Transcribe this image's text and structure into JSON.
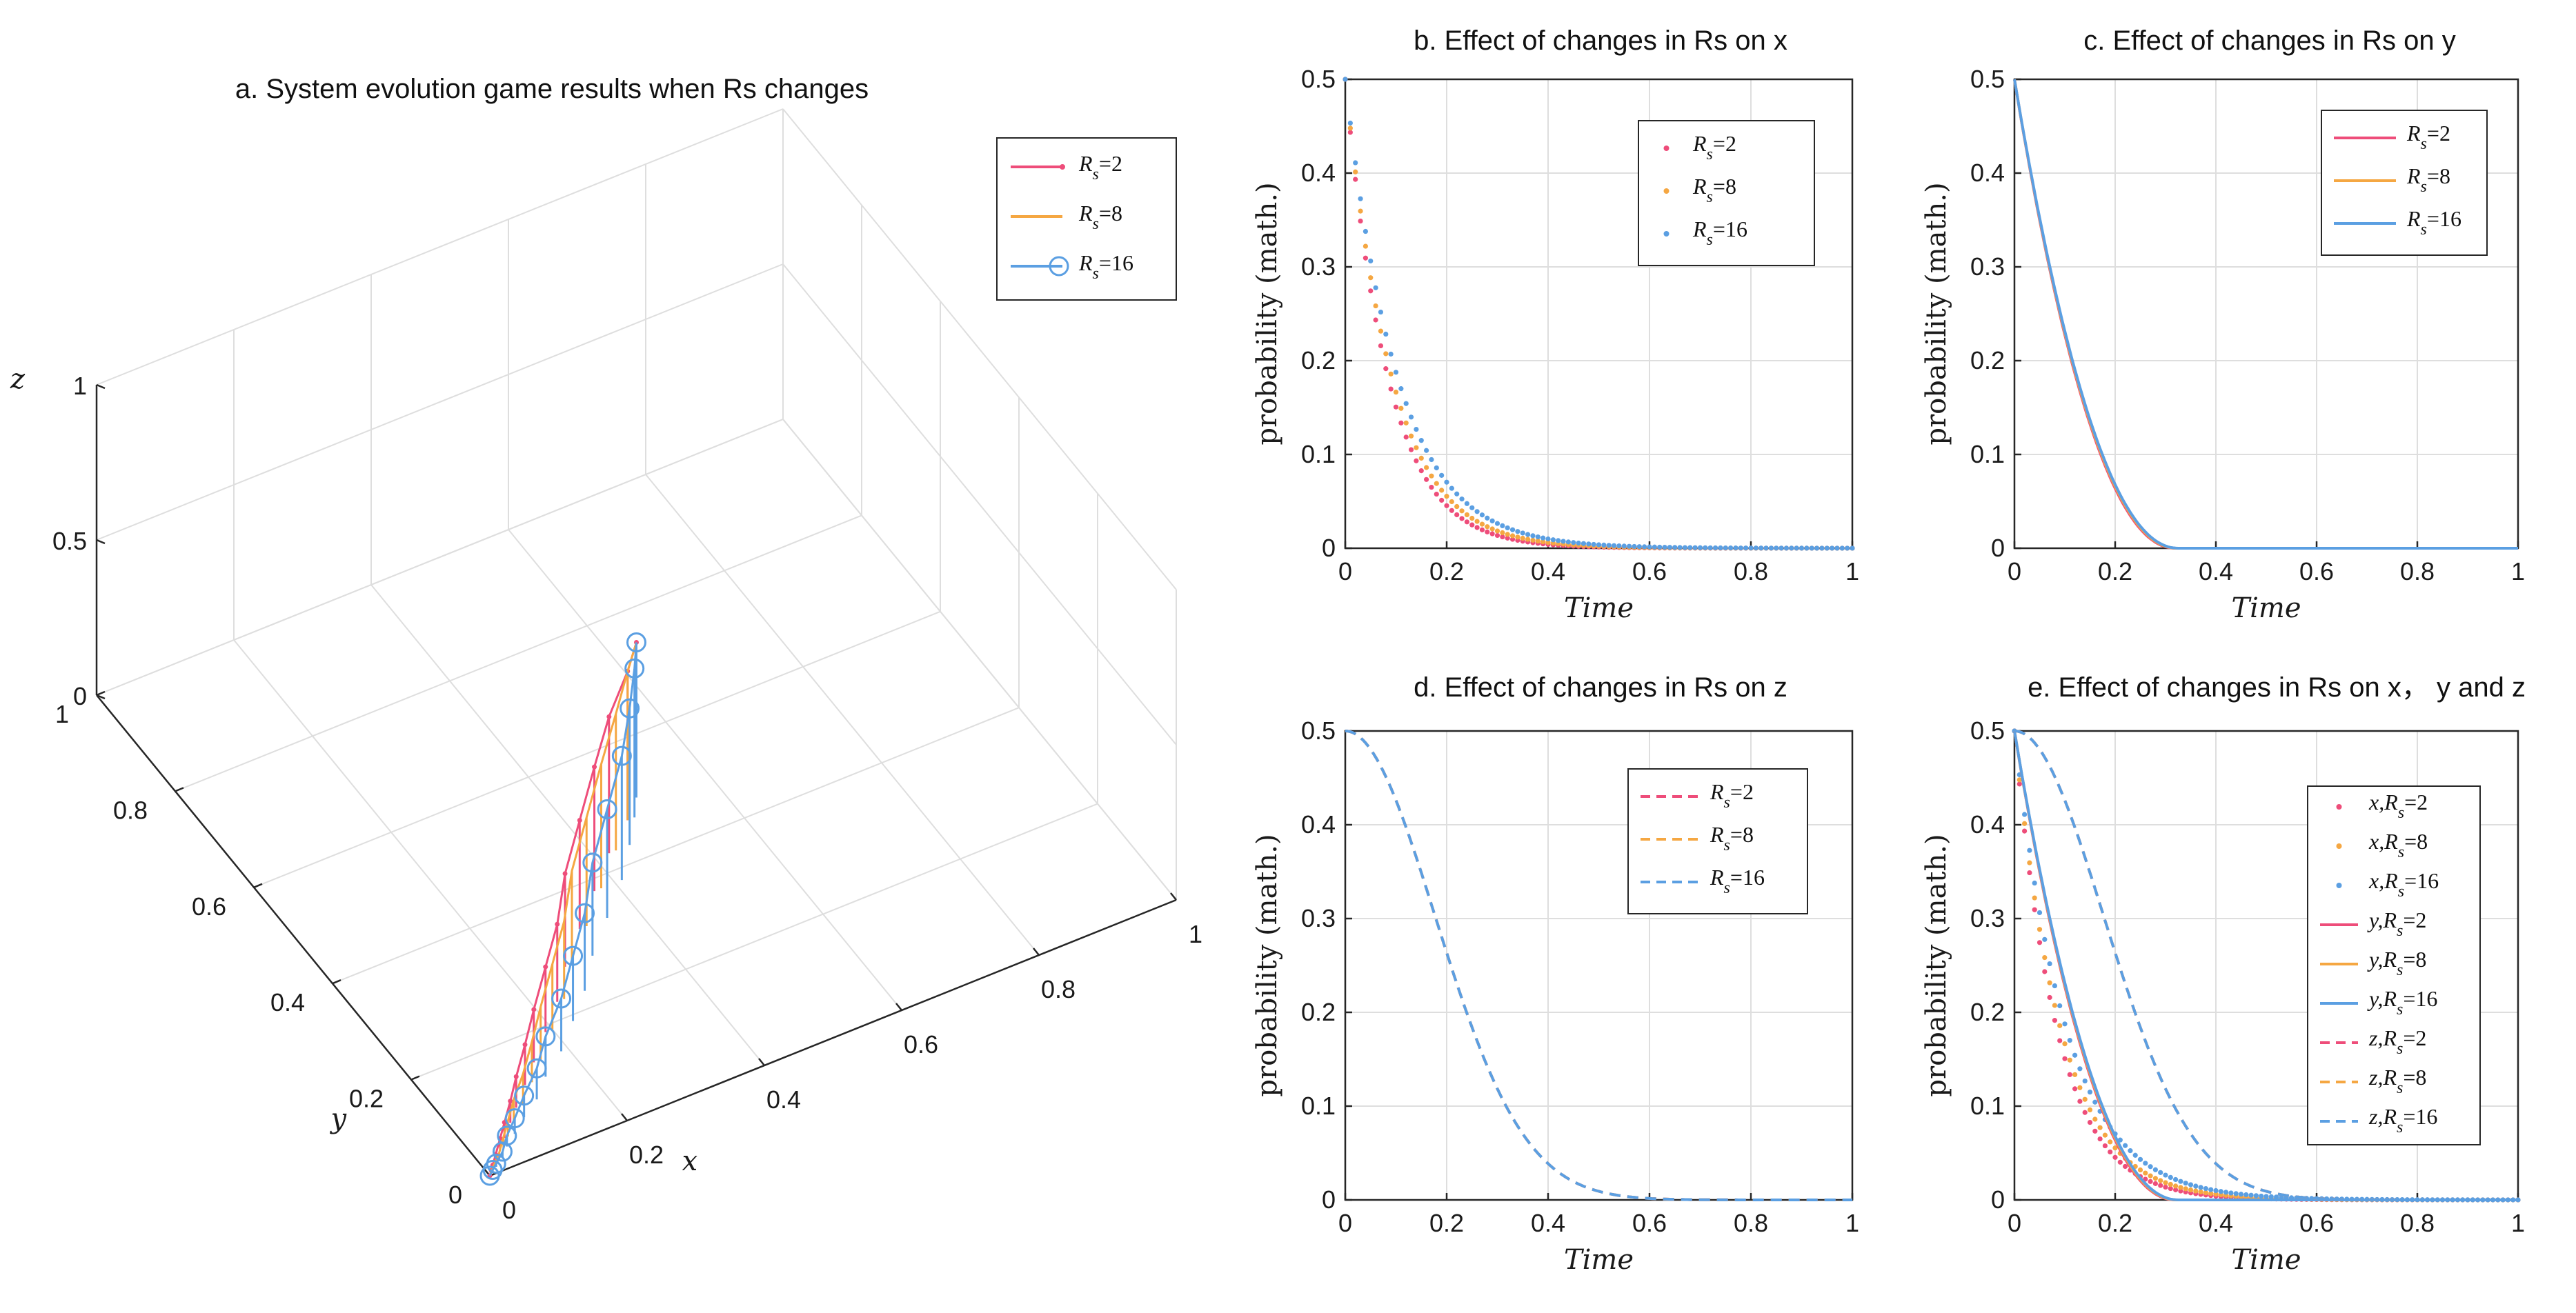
{
  "colors": {
    "rs2": "#ee4d7a",
    "rs8": "#f5a742",
    "rs16": "#5b9fe2"
  },
  "chart_data": [
    {
      "id": "a",
      "type": "line3d",
      "title": "a. System evolution game results when Rs changes",
      "xlabel": "x",
      "ylabel": "y",
      "zlabel": "z",
      "xlim": [
        0,
        1
      ],
      "ylim": [
        0,
        1
      ],
      "zlim": [
        0,
        1
      ],
      "xticks": [
        "0",
        "0.2",
        "0.4",
        "0.6",
        "0.8",
        "1"
      ],
      "yticks": [
        "0",
        "0.2",
        "0.4",
        "0.6",
        "0.8",
        "1"
      ],
      "zticks": [
        "0",
        "0.5",
        "1"
      ],
      "legend": [
        {
          "sym": "R",
          "sub": "s",
          "label": "=2",
          "color": "#ee4d7a"
        },
        {
          "sym": "R",
          "sub": "s",
          "label": "=8",
          "color": "#f5a742"
        },
        {
          "sym": "R",
          "sub": "s",
          "label": "=16",
          "color": "#5b9fe2"
        }
      ],
      "series": [
        {
          "name": "Rs=2",
          "x": [
            0.5,
            0.47,
            0.42,
            0.37,
            0.32,
            0.27,
            0.23,
            0.19,
            0.15,
            0.12,
            0.09,
            0.07,
            0.05,
            0.035,
            0.02,
            0.01,
            0.005,
            0.0
          ],
          "y": [
            0.5,
            0.47,
            0.43,
            0.38,
            0.33,
            0.28,
            0.23,
            0.19,
            0.15,
            0.12,
            0.09,
            0.07,
            0.05,
            0.035,
            0.02,
            0.01,
            0.005,
            0.0
          ],
          "z": [
            0.5,
            0.48,
            0.44,
            0.4,
            0.35,
            0.3,
            0.25,
            0.21,
            0.17,
            0.13,
            0.1,
            0.07,
            0.05,
            0.035,
            0.02,
            0.01,
            0.005,
            0.0
          ]
        },
        {
          "name": "Rs=8",
          "x": [
            0.5,
            0.47,
            0.43,
            0.38,
            0.33,
            0.28,
            0.24,
            0.2,
            0.16,
            0.13,
            0.1,
            0.075,
            0.055,
            0.04,
            0.025,
            0.012,
            0.006,
            0.0
          ],
          "y": [
            0.5,
            0.47,
            0.43,
            0.38,
            0.33,
            0.28,
            0.23,
            0.19,
            0.15,
            0.12,
            0.09,
            0.07,
            0.05,
            0.035,
            0.02,
            0.01,
            0.005,
            0.0
          ],
          "z": [
            0.5,
            0.48,
            0.44,
            0.4,
            0.35,
            0.3,
            0.25,
            0.21,
            0.17,
            0.13,
            0.1,
            0.07,
            0.05,
            0.035,
            0.02,
            0.01,
            0.005,
            0.0
          ]
        },
        {
          "name": "Rs=16",
          "x": [
            0.5,
            0.48,
            0.45,
            0.41,
            0.36,
            0.31,
            0.27,
            0.23,
            0.19,
            0.15,
            0.12,
            0.09,
            0.065,
            0.045,
            0.03,
            0.015,
            0.007,
            0.0
          ],
          "y": [
            0.5,
            0.47,
            0.43,
            0.38,
            0.33,
            0.28,
            0.23,
            0.19,
            0.15,
            0.12,
            0.09,
            0.07,
            0.05,
            0.035,
            0.02,
            0.01,
            0.005,
            0.0
          ],
          "z": [
            0.5,
            0.48,
            0.44,
            0.4,
            0.35,
            0.3,
            0.25,
            0.21,
            0.17,
            0.13,
            0.1,
            0.07,
            0.05,
            0.035,
            0.02,
            0.01,
            0.005,
            0.0
          ]
        }
      ]
    },
    {
      "id": "b",
      "type": "scatter",
      "title": "b. Effect of changes in Rs on x",
      "xlabel": "Time",
      "ylabel": "probability (math.)",
      "xlim": [
        0,
        1
      ],
      "ylim": [
        0,
        0.5
      ],
      "xticks": [
        "0",
        "0.2",
        "0.4",
        "0.6",
        "0.8",
        "1"
      ],
      "yticks": [
        "0",
        "0.1",
        "0.2",
        "0.3",
        "0.4",
        "0.5"
      ],
      "legend": [
        {
          "sym": "R",
          "sub": "s",
          "label": "=2",
          "color": "#ee4d7a",
          "style": "dot"
        },
        {
          "sym": "R",
          "sub": "s",
          "label": "=8",
          "color": "#f5a742",
          "style": "dot"
        },
        {
          "sym": "R",
          "sub": "s",
          "label": "=16",
          "color": "#5b9fe2",
          "style": "dot"
        }
      ],
      "series": [
        {
          "name": "Rs=2",
          "kind": "x",
          "decay": 12.0,
          "shift": 0.0
        },
        {
          "name": "Rs=8",
          "kind": "x",
          "decay": 11.0,
          "shift": 0.0
        },
        {
          "name": "Rs=16",
          "kind": "x",
          "decay": 9.8,
          "shift": 0.0
        }
      ]
    },
    {
      "id": "c",
      "type": "line",
      "title": "c. Effect of changes in Rs on y",
      "xlabel": "Time",
      "ylabel": "probability (math.)",
      "xlim": [
        0,
        1
      ],
      "ylim": [
        0,
        0.5
      ],
      "xticks": [
        "0",
        "0.2",
        "0.4",
        "0.6",
        "0.8",
        "1"
      ],
      "yticks": [
        "0",
        "0.1",
        "0.2",
        "0.3",
        "0.4",
        "0.5"
      ],
      "legend": [
        {
          "sym": "R",
          "sub": "s",
          "label": "=2",
          "color": "#ee4d7a",
          "style": "solid"
        },
        {
          "sym": "R",
          "sub": "s",
          "label": "=8",
          "color": "#f5a742",
          "style": "solid"
        },
        {
          "sym": "R",
          "sub": "s",
          "label": "=16",
          "color": "#5b9fe2",
          "style": "solid"
        }
      ],
      "series": [
        {
          "name": "Rs=2",
          "kind": "y",
          "rate": 0.0
        },
        {
          "name": "Rs=8",
          "kind": "y",
          "rate": 0.003
        },
        {
          "name": "Rs=16",
          "kind": "y",
          "rate": 0.006
        }
      ]
    },
    {
      "id": "d",
      "type": "line",
      "title": "d. Effect of changes in Rs on z",
      "xlabel": "Time",
      "ylabel": "probability (math.)",
      "xlim": [
        0,
        1
      ],
      "ylim": [
        0,
        0.5
      ],
      "xticks": [
        "0",
        "0.2",
        "0.4",
        "0.6",
        "0.8",
        "1"
      ],
      "yticks": [
        "0",
        "0.1",
        "0.2",
        "0.3",
        "0.4",
        "0.5"
      ],
      "legend": [
        {
          "sym": "R",
          "sub": "s",
          "label": "=2",
          "color": "#ee4d7a",
          "style": "dash"
        },
        {
          "sym": "R",
          "sub": "s",
          "label": "=8",
          "color": "#f5a742",
          "style": "dash"
        },
        {
          "sym": "R",
          "sub": "s",
          "label": "=16",
          "color": "#5b9fe2",
          "style": "dash"
        }
      ],
      "series": [
        {
          "name": "Rs=2",
          "kind": "z"
        },
        {
          "name": "Rs=8",
          "kind": "z"
        },
        {
          "name": "Rs=16",
          "kind": "z"
        }
      ]
    },
    {
      "id": "e",
      "type": "line",
      "title": "e. Effect of changes in Rs on x， y and z",
      "xlabel": "Time",
      "ylabel": "probability (math.)",
      "xlim": [
        0,
        1
      ],
      "ylim": [
        0,
        0.5
      ],
      "xticks": [
        "0",
        "0.2",
        "0.4",
        "0.6",
        "0.8",
        "1"
      ],
      "yticks": [
        "0",
        "0.1",
        "0.2",
        "0.3",
        "0.4",
        "0.5"
      ],
      "legend": [
        {
          "sym": "x,R",
          "sub": "s",
          "label": "=2",
          "color": "#ee4d7a",
          "style": "dot"
        },
        {
          "sym": "x,R",
          "sub": "s",
          "label": "=8",
          "color": "#f5a742",
          "style": "dot"
        },
        {
          "sym": "x,R",
          "sub": "s",
          "label": "=16",
          "color": "#5b9fe2",
          "style": "dot"
        },
        {
          "sym": "y,R",
          "sub": "s",
          "label": "=2",
          "color": "#ee4d7a",
          "style": "solid"
        },
        {
          "sym": "y,R",
          "sub": "s",
          "label": "=8",
          "color": "#f5a742",
          "style": "solid"
        },
        {
          "sym": "y,R",
          "sub": "s",
          "label": "=16",
          "color": "#5b9fe2",
          "style": "solid"
        },
        {
          "sym": "z,R",
          "sub": "s",
          "label": "=2",
          "color": "#ee4d7a",
          "style": "dash"
        },
        {
          "sym": "z,R",
          "sub": "s",
          "label": "=8",
          "color": "#f5a742",
          "style": "dash"
        },
        {
          "sym": "z,R",
          "sub": "s",
          "label": "=16",
          "color": "#5b9fe2",
          "style": "dash"
        }
      ]
    }
  ]
}
